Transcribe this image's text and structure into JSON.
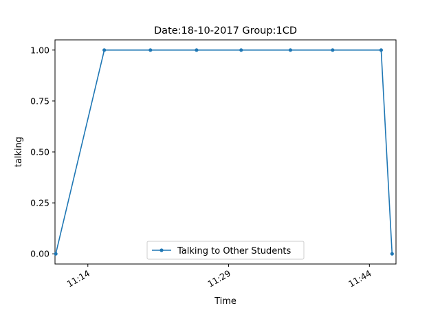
{
  "chart_data": {
    "type": "line",
    "title": "Date:18-10-2017  Group:1CD",
    "xlabel": "Time",
    "ylabel": "talking",
    "x_tick_labels": [
      "11:14",
      "11:29",
      "11:44"
    ],
    "y_tick_labels": [
      "0.00",
      "0.25",
      "0.50",
      "0.75",
      "1.00"
    ],
    "ylim": [
      -0.05,
      1.05
    ],
    "xlim": [
      "11:10:30",
      "11:46:50"
    ],
    "grid": false,
    "legend_position": "bottom-center",
    "series": [
      {
        "name": "Talking to Other Students",
        "color": "#1f77b4",
        "marker": "dot",
        "x": [
          "11:10:35",
          "11:15:45",
          "11:20:40",
          "11:25:35",
          "11:30:20",
          "11:35:35",
          "11:40:05",
          "11:45:15",
          "11:46:25"
        ],
        "values": [
          0,
          1,
          1,
          1,
          1,
          1,
          1,
          1,
          0
        ]
      }
    ]
  }
}
